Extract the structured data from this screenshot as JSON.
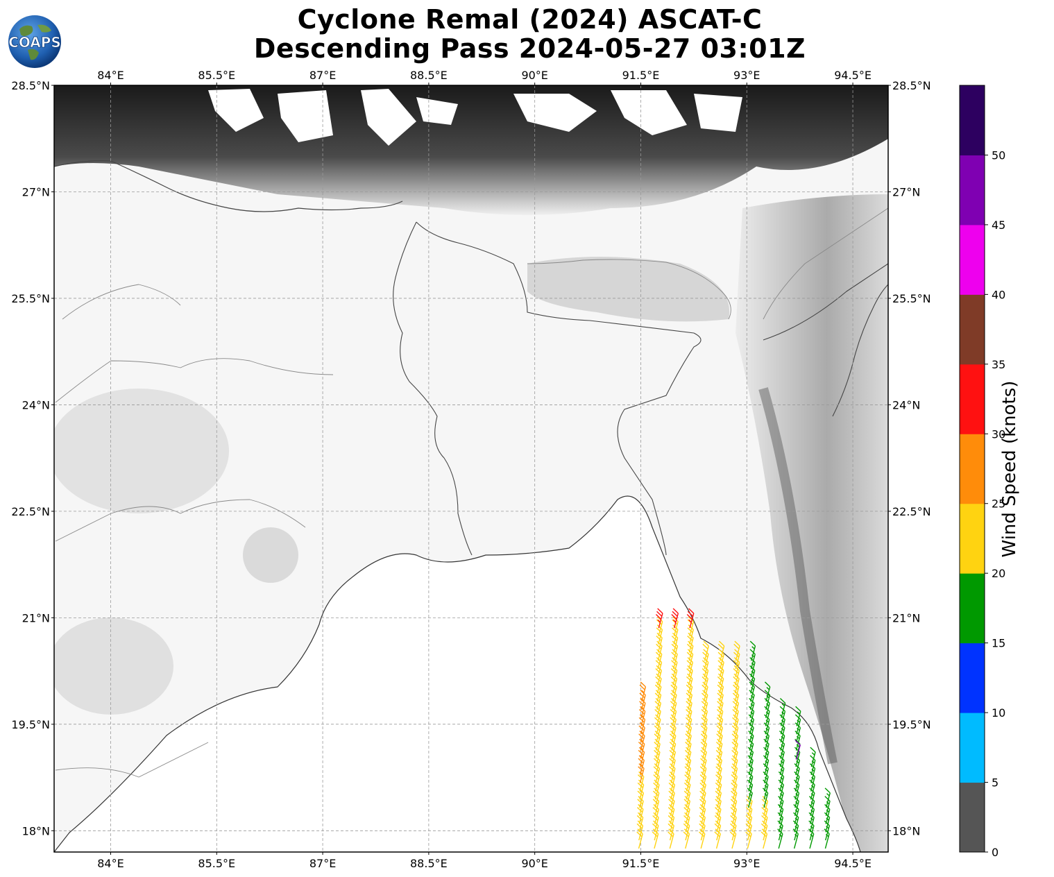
{
  "title": {
    "line1": "Cyclone Remal (2024) ASCAT-C",
    "line2": "Descending Pass 2024-05-27 03:01Z"
  },
  "logo": {
    "text": "COAPS"
  },
  "map": {
    "lon_ticks": [
      "84°E",
      "85.5°E",
      "87°E",
      "88.5°E",
      "90°E",
      "91.5°E",
      "93°E",
      "94.5°E"
    ],
    "lat_ticks": [
      "28.5°N",
      "27°N",
      "25.5°N",
      "24°N",
      "22.5°N",
      "21°N",
      "19.5°N",
      "18°N"
    ],
    "lon_range": [
      83.2,
      95.0
    ],
    "lat_range": [
      17.7,
      28.5
    ]
  },
  "colorbar": {
    "label": "Wind Speed (knots)",
    "ticks": [
      "0",
      "5",
      "10",
      "15",
      "20",
      "25",
      "30",
      "35",
      "40",
      "45",
      "50"
    ],
    "colors": [
      "#555555",
      "#00bbff",
      "#0033ff",
      "#009900",
      "#ffd311",
      "#ff8c0a",
      "#ff1111",
      "#7f3b27",
      "#ee00ee",
      "#7f00b2",
      "#2d0060"
    ]
  },
  "barb_colors": {
    "calm": "#555555",
    "moderate": "#009900",
    "fresh": "#ffd311",
    "strong": "#ff8c0a",
    "gale": "#ff1111",
    "storm": "#7f00b2"
  }
}
